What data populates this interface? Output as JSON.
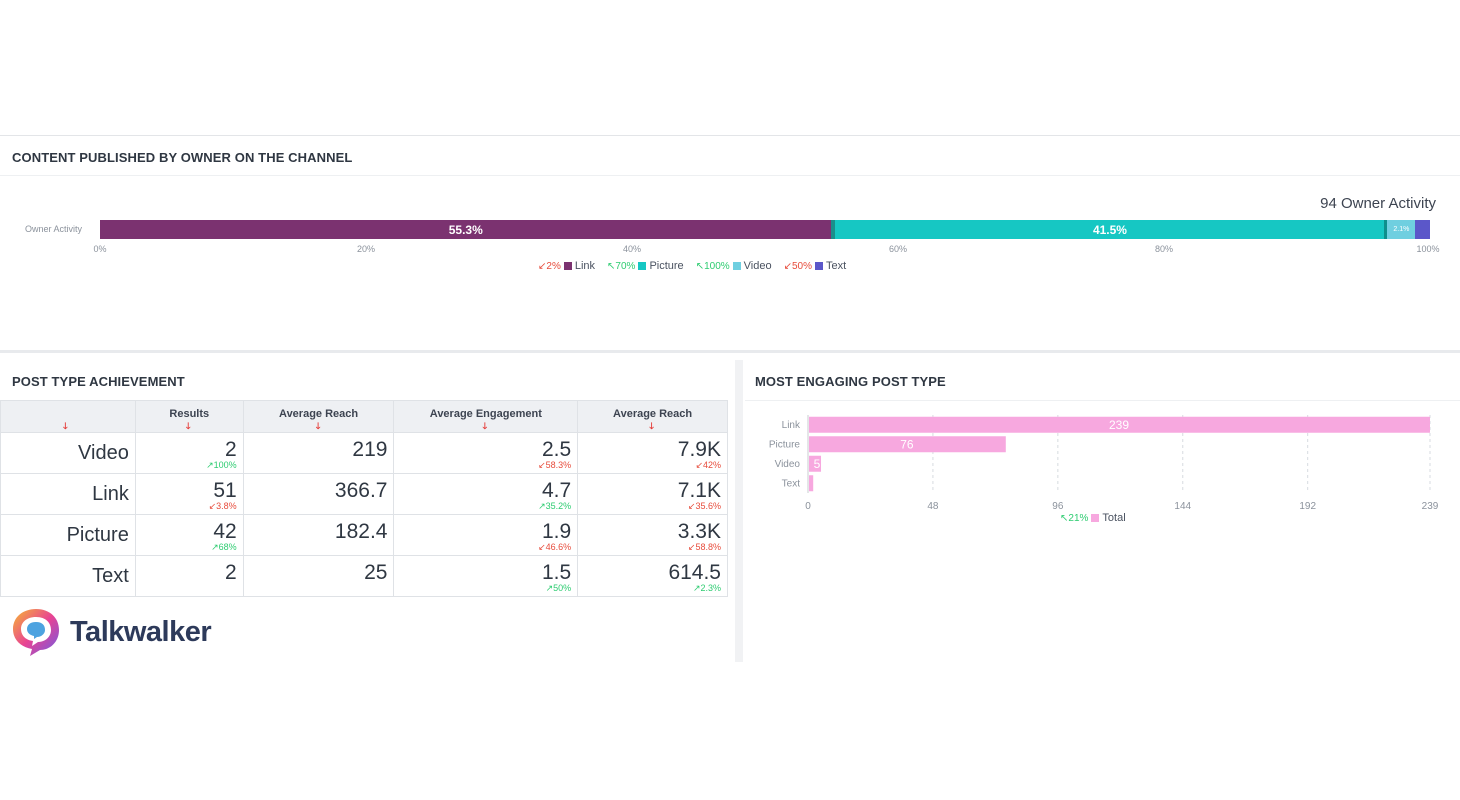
{
  "content_section": {
    "title": "CONTENT PUBLISHED BY OWNER ON THE CHANNEL",
    "total_label": "94 Owner Activity",
    "row_label": "Owner Activity",
    "segments": [
      {
        "name": "Link",
        "share": 55.3,
        "label": "55.3%",
        "color": "#7b3270"
      },
      {
        "name": "Picture",
        "share": 41.5,
        "label": "41.5%",
        "color": "#16c7c3"
      },
      {
        "name": "Video",
        "share": 2.1,
        "label": "2.1%",
        "color": "#6fcfe0"
      },
      {
        "name": "Text",
        "share": 1.1,
        "label": "",
        "color": "#5b57c9"
      }
    ],
    "axis_ticks": [
      "0%",
      "20%",
      "40%",
      "60%",
      "80%",
      "100%"
    ],
    "legend": [
      {
        "arrow": "↙",
        "direction": "down",
        "change": "2%",
        "name": "Link",
        "color": "#7b3270"
      },
      {
        "arrow": "↖",
        "direction": "up",
        "change": "70%",
        "name": "Picture",
        "color": "#16c7c3"
      },
      {
        "arrow": "↖",
        "direction": "up",
        "change": "100%",
        "name": "Video",
        "color": "#6fcfe0"
      },
      {
        "arrow": "↙",
        "direction": "down",
        "change": "50%",
        "name": "Text",
        "color": "#5b57c9"
      }
    ]
  },
  "post_type_section": {
    "title": "POST TYPE ACHIEVEMENT",
    "columns": [
      "",
      "Results",
      "Average Reach",
      "Average Engagement",
      "Average Reach"
    ],
    "rows": [
      {
        "type": "Video",
        "cells": [
          {
            "value": "2",
            "change": "100%",
            "arrow": "↗",
            "dir": "up"
          },
          {
            "value": "219",
            "change": "",
            "arrow": "",
            "dir": ""
          },
          {
            "value": "2.5",
            "change": "58.3%",
            "arrow": "↙",
            "dir": "down"
          },
          {
            "value": "7.9K",
            "change": "42%",
            "arrow": "↙",
            "dir": "down"
          }
        ]
      },
      {
        "type": "Link",
        "cells": [
          {
            "value": "51",
            "change": "3.8%",
            "arrow": "↙",
            "dir": "down"
          },
          {
            "value": "366.7",
            "change": "",
            "arrow": "",
            "dir": ""
          },
          {
            "value": "4.7",
            "change": "35.2%",
            "arrow": "↗",
            "dir": "up"
          },
          {
            "value": "7.1K",
            "change": "35.6%",
            "arrow": "↙",
            "dir": "down"
          }
        ]
      },
      {
        "type": "Picture",
        "cells": [
          {
            "value": "42",
            "change": "68%",
            "arrow": "↗",
            "dir": "up"
          },
          {
            "value": "182.4",
            "change": "",
            "arrow": "",
            "dir": ""
          },
          {
            "value": "1.9",
            "change": "46.6%",
            "arrow": "↙",
            "dir": "down"
          },
          {
            "value": "3.3K",
            "change": "58.8%",
            "arrow": "↙",
            "dir": "down"
          }
        ]
      },
      {
        "type": "Text",
        "cells": [
          {
            "value": "2",
            "change": "",
            "arrow": "",
            "dir": ""
          },
          {
            "value": "25",
            "change": "",
            "arrow": "",
            "dir": ""
          },
          {
            "value": "1.5",
            "change": "50%",
            "arrow": "↗",
            "dir": "up"
          },
          {
            "value": "614.5",
            "change": "2.3%",
            "arrow": "↗",
            "dir": "up"
          }
        ]
      }
    ]
  },
  "engaging_section": {
    "title": "MOST ENGAGING POST TYPE",
    "legend_arrow": "↖",
    "legend_change": "21%",
    "legend_name": "Total",
    "bar_color": "#f7a8df"
  },
  "brand": {
    "name": "Talkwalker"
  },
  "chart_data": {
    "type": "bar",
    "orientation": "horizontal",
    "categories": [
      "Link",
      "Picture",
      "Video",
      "Text"
    ],
    "values": [
      239,
      76,
      5,
      2
    ],
    "data_labels": [
      "239",
      "76",
      "5",
      ""
    ],
    "x_ticks": [
      "0",
      "48",
      "96",
      "144",
      "192",
      "239"
    ],
    "xlim": [
      0,
      239
    ],
    "series": [
      {
        "name": "Total",
        "values": [
          239,
          76,
          5,
          2
        ]
      }
    ],
    "grid": true,
    "legend_position": "bottom"
  }
}
